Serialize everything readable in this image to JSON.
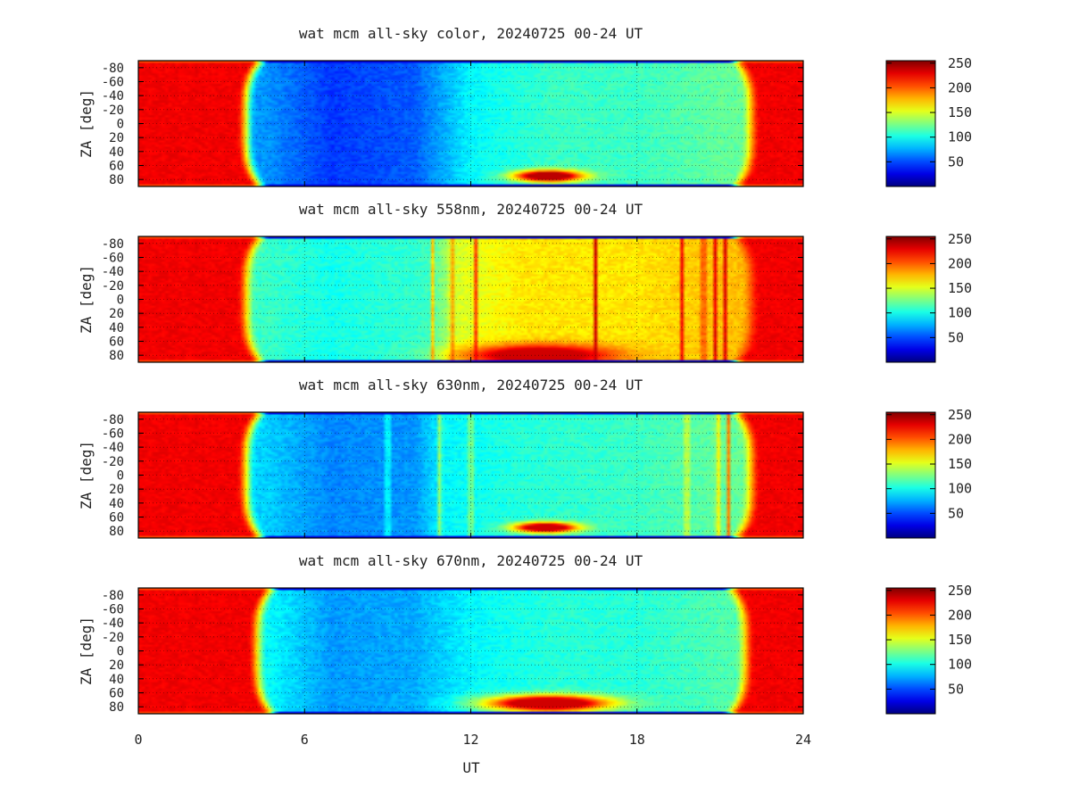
{
  "figure": {
    "xlabel": "UT",
    "ylabel": "ZA [deg]",
    "x_ticks": [
      "0",
      "6",
      "12",
      "18",
      "24"
    ],
    "y_ticks": [
      "-80",
      "-60",
      "-40",
      "-20",
      "0",
      "20",
      "40",
      "60",
      "80"
    ],
    "colorbar_ticks": [
      "250",
      "200",
      "150",
      "100",
      "50"
    ]
  },
  "chart_data": [
    {
      "type": "heatmap",
      "title": "wat mcm all-sky color, 20240725 00-24 UT",
      "xlabel": "",
      "ylabel": "ZA [deg]",
      "xlim": [
        0,
        24
      ],
      "ylim": [
        -90,
        90
      ],
      "x_ticks": [
        0,
        6,
        12,
        18,
        24
      ],
      "y_ticks": [
        -80,
        -60,
        -40,
        -20,
        0,
        20,
        40,
        60,
        80
      ],
      "colorbar": {
        "range": [
          0,
          255
        ],
        "ticks": [
          50,
          100,
          150,
          200,
          250
        ],
        "colormap": "jet"
      },
      "grid": true,
      "sunlit_until_ut": 3.9,
      "sunlit_from_ut": 22.1,
      "night_background_value": 55,
      "night_trend": [
        [
          4.5,
          70
        ],
        [
          7,
          45
        ],
        [
          10,
          55
        ],
        [
          12,
          95
        ],
        [
          15,
          110
        ],
        [
          18,
          110
        ],
        [
          21,
          120
        ]
      ],
      "moon_blob": {
        "ut_center": 14.8,
        "ut_halfwidth": 1.5,
        "za_center": 75,
        "za_halfwidth": 10,
        "value": 240
      },
      "streaks": []
    },
    {
      "type": "heatmap",
      "title": "wat mcm all-sky 558nm, 20240725 00-24 UT",
      "xlabel": "",
      "ylabel": "ZA [deg]",
      "xlim": [
        0,
        24
      ],
      "ylim": [
        -90,
        90
      ],
      "x_ticks": [
        0,
        6,
        12,
        18,
        24
      ],
      "y_ticks": [
        -80,
        -60,
        -40,
        -20,
        0,
        20,
        40,
        60,
        80
      ],
      "colorbar": {
        "range": [
          0,
          255
        ],
        "ticks": [
          50,
          100,
          150,
          200,
          250
        ],
        "colormap": "jet"
      },
      "grid": true,
      "sunlit_until_ut": 3.9,
      "sunlit_from_ut": 22.1,
      "night_background_value": 110,
      "night_trend": [
        [
          4.5,
          110
        ],
        [
          7,
          100
        ],
        [
          10.5,
          110
        ],
        [
          11.5,
          150
        ],
        [
          14,
          165
        ],
        [
          18,
          165
        ],
        [
          21,
          175
        ]
      ],
      "moon_blob": {
        "ut_center": 14.5,
        "ut_halfwidth": 3.2,
        "za_center": 80,
        "za_halfwidth": 18,
        "value": 235
      },
      "streaks": [
        10.6,
        11.3,
        12.2,
        16.5,
        19.6,
        20.4,
        20.8,
        21.2
      ]
    },
    {
      "type": "heatmap",
      "title": "wat mcm all-sky 630nm, 20240725 00-24 UT",
      "xlabel": "",
      "ylabel": "ZA [deg]",
      "xlim": [
        0,
        24
      ],
      "ylim": [
        -90,
        90
      ],
      "x_ticks": [
        0,
        6,
        12,
        18,
        24
      ],
      "y_ticks": [
        -80,
        -60,
        -40,
        -20,
        0,
        20,
        40,
        60,
        80
      ],
      "colorbar": {
        "range": [
          0,
          255
        ],
        "ticks": [
          50,
          100,
          150,
          200,
          250
        ],
        "colormap": "jet"
      },
      "grid": true,
      "sunlit_until_ut": 3.9,
      "sunlit_from_ut": 22.1,
      "night_background_value": 75,
      "night_trend": [
        [
          4.5,
          85
        ],
        [
          7,
          65
        ],
        [
          10,
          70
        ],
        [
          11,
          95
        ],
        [
          14,
          105
        ],
        [
          18,
          110
        ],
        [
          21,
          120
        ]
      ],
      "moon_blob": {
        "ut_center": 14.7,
        "ut_halfwidth": 1.4,
        "za_center": 75,
        "za_halfwidth": 9,
        "value": 235
      },
      "streaks": [
        9.0,
        10.9,
        12.0,
        19.8,
        20.9,
        21.3
      ]
    },
    {
      "type": "heatmap",
      "title": "wat mcm all-sky 670nm, 20240725 00-24 UT",
      "xlabel": "UT",
      "ylabel": "ZA [deg]",
      "xlim": [
        0,
        24
      ],
      "ylim": [
        -90,
        90
      ],
      "x_ticks": [
        0,
        6,
        12,
        18,
        24
      ],
      "y_ticks": [
        -80,
        -60,
        -40,
        -20,
        0,
        20,
        40,
        60,
        80
      ],
      "colorbar": {
        "range": [
          0,
          255
        ],
        "ticks": [
          50,
          100,
          150,
          200,
          250
        ],
        "colormap": "jet"
      },
      "grid": true,
      "sunlit_until_ut": 4.3,
      "sunlit_from_ut": 21.9,
      "night_background_value": 80,
      "night_trend": [
        [
          4.8,
          95
        ],
        [
          7,
          70
        ],
        [
          10,
          75
        ],
        [
          12,
          95
        ],
        [
          15,
          105
        ],
        [
          18,
          105
        ],
        [
          21,
          115
        ]
      ],
      "moon_blob": {
        "ut_center": 14.8,
        "ut_halfwidth": 2.7,
        "za_center": 75,
        "za_halfwidth": 14,
        "value": 235
      },
      "streaks": []
    }
  ]
}
